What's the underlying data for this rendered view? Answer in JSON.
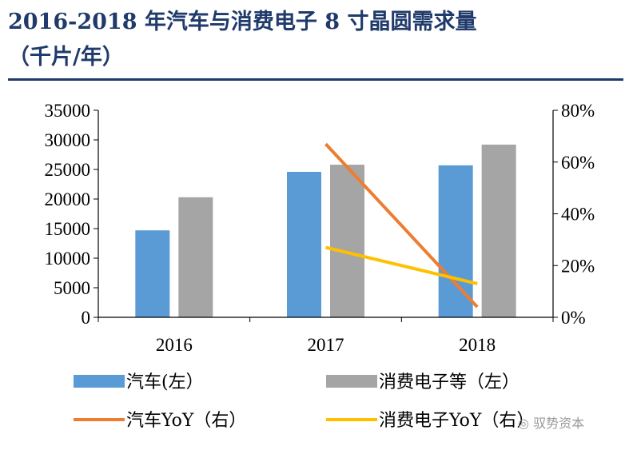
{
  "title_line1": "2016-2018 年汽车与消费电子 8 寸晶圆需求量",
  "title_line2": "（千片/年）",
  "watermark": "驭势资本",
  "chart_data": {
    "type": "bar",
    "categories": [
      "2016",
      "2017",
      "2018"
    ],
    "series": [
      {
        "name": "汽车(左）",
        "kind": "bar",
        "axis": "left",
        "color": "#5b9bd5",
        "values": [
          14700,
          24600,
          25700
        ]
      },
      {
        "name": "消费电子等（左）",
        "kind": "bar",
        "axis": "left",
        "color": "#a5a5a5",
        "values": [
          20300,
          25800,
          29200
        ]
      },
      {
        "name": "汽车YoY（右）",
        "kind": "line",
        "axis": "right",
        "color": "#ed7d31",
        "values": [
          null,
          67,
          4
        ]
      },
      {
        "name": "消费电子YoY（右）",
        "kind": "line",
        "axis": "right",
        "color": "#ffc000",
        "values": [
          null,
          27,
          13
        ]
      }
    ],
    "y_left": {
      "range": [
        0,
        35000
      ],
      "ticks": [
        "35000",
        "30000",
        "25000",
        "20000",
        "15000",
        "10000",
        "5000",
        "0"
      ]
    },
    "y_right": {
      "range": [
        0,
        80
      ],
      "ticks": [
        "80%",
        "60%",
        "40%",
        "20%",
        "0%"
      ]
    },
    "grid": false,
    "legend": "bottom"
  }
}
